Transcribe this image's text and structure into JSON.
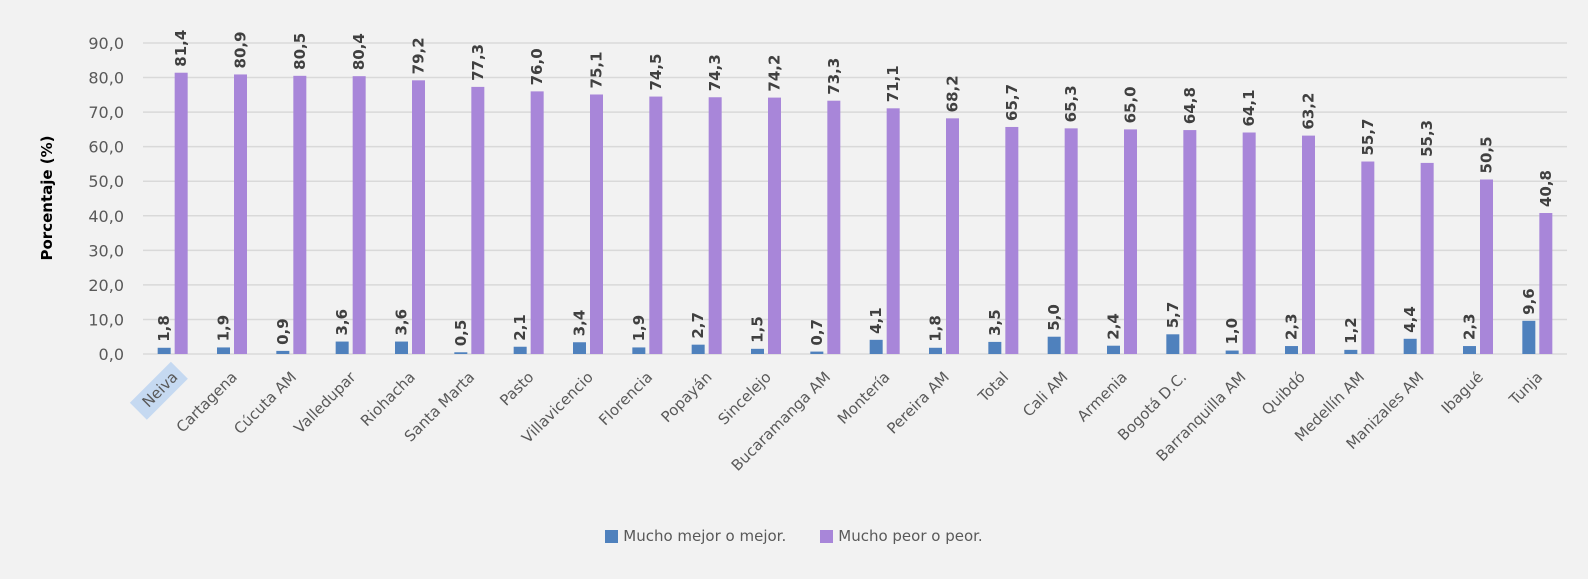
{
  "chart_data": {
    "type": "bar",
    "title": "",
    "xlabel": "",
    "ylabel": "Porcentaje (%)",
    "ylim": [
      0,
      90
    ],
    "yticks": [
      "0,0",
      "10,0",
      "20,0",
      "30,0",
      "40,0",
      "50,0",
      "60,0",
      "70,0",
      "80,0",
      "90,0"
    ],
    "grid": true,
    "legend_position": "bottom",
    "highlighted_category": "Neiva",
    "categories": [
      "Neiva",
      "Cartagena",
      "Cúcuta AM",
      "Valledupar",
      "Riohacha",
      "Santa Marta",
      "Pasto",
      "Villavicencio",
      "Florencia",
      "Popayán",
      "Sincelejo",
      "Bucaramanga AM",
      "Montería",
      "Pereira AM",
      "Total",
      "Cali AM",
      "Armenia",
      "Bogotá D.C.",
      "Barranquilla AM",
      "Quibdó",
      "Medellín AM",
      "Manizales AM",
      "Ibagué",
      "Tunja"
    ],
    "series": [
      {
        "name": "Mucho mejor o mejor.",
        "color": "#4f81bd",
        "values": [
          1.8,
          1.9,
          0.9,
          3.6,
          3.6,
          0.5,
          2.1,
          3.4,
          1.9,
          2.7,
          1.5,
          0.7,
          4.1,
          1.8,
          3.5,
          5.0,
          2.4,
          5.7,
          1.0,
          2.3,
          1.2,
          4.4,
          2.3,
          9.6
        ]
      },
      {
        "name": "Mucho peor o peor.",
        "color": "#a886d9",
        "values": [
          81.4,
          80.9,
          80.5,
          80.4,
          79.2,
          77.3,
          76.0,
          75.1,
          74.5,
          74.3,
          74.2,
          73.3,
          71.1,
          68.2,
          65.7,
          65.3,
          65.0,
          64.8,
          64.1,
          63.2,
          55.7,
          55.3,
          50.5,
          40.8
        ]
      }
    ]
  }
}
